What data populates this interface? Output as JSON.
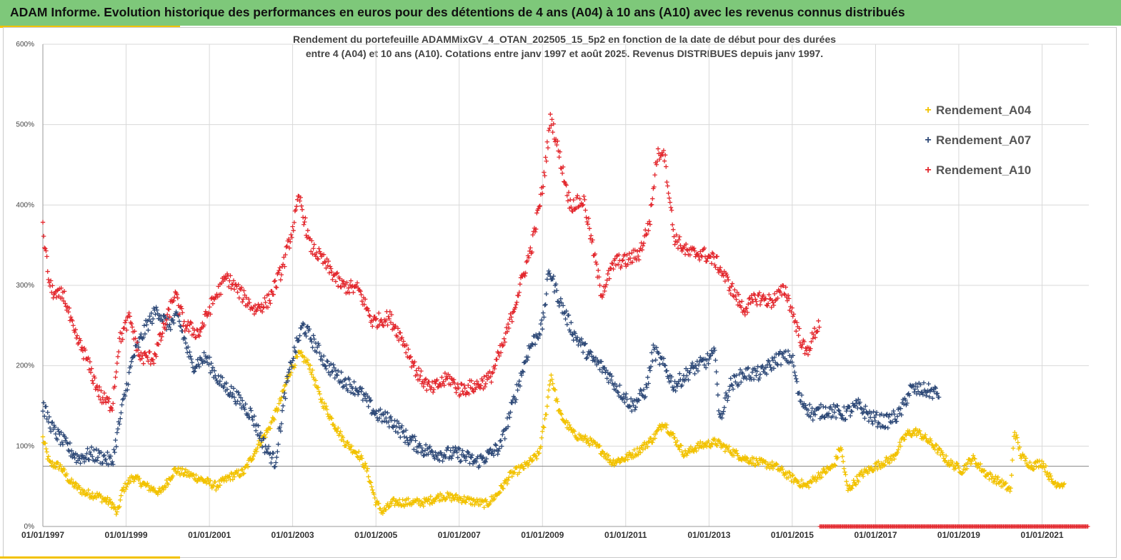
{
  "header": {
    "title": "ADAM Informe. Evolution historique des performances en euros pour des détentions de 4 ans (A04) à 10 ans (A10) avec les revenus connus distribués"
  },
  "chart_data": {
    "type": "scatter",
    "title_line1": "Rendement du portefeuille ADAMMixGV_4_OTAN_202505_15_5p2  en fonction de la date de début pour des durées",
    "title_line2": "entre 4 (A04) et 10 ans (A10). Cotations entre janv 1997 et août 2025. Revenus DISTRIBUES depuis janv 1997.",
    "xlabel": "",
    "ylabel": "",
    "x_range": [
      "1997-01-01",
      "2022-02-15"
    ],
    "ylim": [
      0,
      600
    ],
    "y_ticks": [
      "0%",
      "100%",
      "200%",
      "300%",
      "400%",
      "500%",
      "600%"
    ],
    "x_ticks": [
      "01/01/1997",
      "01/01/1999",
      "01/01/2001",
      "01/01/2003",
      "01/01/2005",
      "01/01/2007",
      "01/01/2009",
      "01/01/2011",
      "01/01/2013",
      "01/01/2015",
      "01/01/2017",
      "01/01/2019",
      "01/01/2021"
    ],
    "grid": true,
    "legend_position": "top-right",
    "reference_line_y": 75,
    "marker": "+",
    "series": [
      {
        "name": "Rendement_A04",
        "color": "#f2c200",
        "x_start": "1997-01-01",
        "x_end": "2021-07-15",
        "points": [
          [
            "1997-01-01",
            110
          ],
          [
            "1997-03-01",
            78
          ],
          [
            "1997-06-01",
            75
          ],
          [
            "1997-09-01",
            55
          ],
          [
            "1998-01-01",
            42
          ],
          [
            "1998-05-01",
            38
          ],
          [
            "1998-09-01",
            28
          ],
          [
            "1998-10-15",
            15
          ],
          [
            "1998-12-01",
            45
          ],
          [
            "1999-03-01",
            62
          ],
          [
            "1999-07-01",
            50
          ],
          [
            "1999-11-01",
            42
          ],
          [
            "2000-03-01",
            70
          ],
          [
            "2000-07-01",
            65
          ],
          [
            "2000-11-01",
            58
          ],
          [
            "2001-03-01",
            50
          ],
          [
            "2001-07-01",
            62
          ],
          [
            "2001-11-01",
            68
          ],
          [
            "2002-03-01",
            100
          ],
          [
            "2002-06-01",
            120
          ],
          [
            "2002-09-01",
            150
          ],
          [
            "2002-12-01",
            190
          ],
          [
            "2003-03-01",
            215
          ],
          [
            "2003-06-01",
            200
          ],
          [
            "2003-09-01",
            160
          ],
          [
            "2003-12-01",
            135
          ],
          [
            "2004-04-01",
            105
          ],
          [
            "2004-08-01",
            90
          ],
          [
            "2004-10-15",
            70
          ],
          [
            "2005-01-01",
            30
          ],
          [
            "2005-03-01",
            18
          ],
          [
            "2005-06-01",
            30
          ],
          [
            "2005-10-01",
            30
          ],
          [
            "2006-03-01",
            30
          ],
          [
            "2006-08-01",
            38
          ],
          [
            "2007-01-01",
            35
          ],
          [
            "2007-06-01",
            30
          ],
          [
            "2007-09-01",
            28
          ],
          [
            "2007-12-01",
            40
          ],
          [
            "2008-04-01",
            65
          ],
          [
            "2008-08-01",
            75
          ],
          [
            "2008-12-01",
            90
          ],
          [
            "2009-02-01",
            140
          ],
          [
            "2009-03-15",
            190
          ],
          [
            "2009-06-01",
            140
          ],
          [
            "2009-10-01",
            115
          ],
          [
            "2010-03-01",
            105
          ],
          [
            "2010-06-01",
            95
          ],
          [
            "2010-09-01",
            80
          ],
          [
            "2011-01-01",
            85
          ],
          [
            "2011-05-01",
            95
          ],
          [
            "2011-09-01",
            110
          ],
          [
            "2011-12-01",
            130
          ],
          [
            "2012-03-01",
            110
          ],
          [
            "2012-06-01",
            90
          ],
          [
            "2012-10-01",
            100
          ],
          [
            "2013-03-01",
            105
          ],
          [
            "2013-07-01",
            95
          ],
          [
            "2013-11-01",
            85
          ],
          [
            "2014-03-01",
            80
          ],
          [
            "2014-08-01",
            75
          ],
          [
            "2015-01-01",
            60
          ],
          [
            "2015-05-01",
            50
          ],
          [
            "2015-09-01",
            65
          ],
          [
            "2016-01-01",
            75
          ],
          [
            "2016-03-01",
            100
          ],
          [
            "2016-05-01",
            45
          ],
          [
            "2016-09-01",
            65
          ],
          [
            "2017-01-01",
            75
          ],
          [
            "2017-06-01",
            85
          ],
          [
            "2017-10-01",
            115
          ],
          [
            "2018-01-01",
            118
          ],
          [
            "2018-06-01",
            100
          ],
          [
            "2018-10-01",
            80
          ],
          [
            "2019-02-01",
            70
          ],
          [
            "2019-05-01",
            85
          ],
          [
            "2019-09-01",
            65
          ],
          [
            "2020-01-01",
            55
          ],
          [
            "2020-04-01",
            45
          ],
          [
            "2020-05-01",
            120
          ],
          [
            "2020-07-01",
            88
          ],
          [
            "2020-10-01",
            75
          ],
          [
            "2021-01-01",
            80
          ],
          [
            "2021-04-01",
            55
          ],
          [
            "2021-07-15",
            52
          ]
        ]
      },
      {
        "name": "Rendement_A07",
        "color": "#2f4a78",
        "x_start": "1997-01-01",
        "x_end": "2018-07-15",
        "points": [
          [
            "1997-01-01",
            150
          ],
          [
            "1997-04-01",
            120
          ],
          [
            "1997-08-01",
            100
          ],
          [
            "1997-11-01",
            85
          ],
          [
            "1998-03-01",
            90
          ],
          [
            "1998-07-01",
            85
          ],
          [
            "1998-09-01",
            80
          ],
          [
            "1998-12-01",
            150
          ],
          [
            "1999-03-01",
            210
          ],
          [
            "1999-07-01",
            250
          ],
          [
            "1999-10-01",
            270
          ],
          [
            "2000-01-01",
            250
          ],
          [
            "2000-04-01",
            260
          ],
          [
            "2000-06-01",
            230
          ],
          [
            "2000-08-01",
            200
          ],
          [
            "2000-12-01",
            210
          ],
          [
            "2001-04-01",
            180
          ],
          [
            "2001-08-01",
            165
          ],
          [
            "2002-01-01",
            140
          ],
          [
            "2002-05-01",
            100
          ],
          [
            "2002-08-01",
            80
          ],
          [
            "2002-11-01",
            170
          ],
          [
            "2003-01-01",
            210
          ],
          [
            "2003-04-01",
            250
          ],
          [
            "2003-07-01",
            230
          ],
          [
            "2003-11-01",
            200
          ],
          [
            "2004-04-01",
            180
          ],
          [
            "2004-08-01",
            170
          ],
          [
            "2005-01-01",
            140
          ],
          [
            "2005-06-01",
            130
          ],
          [
            "2005-10-01",
            110
          ],
          [
            "2006-03-01",
            95
          ],
          [
            "2006-08-01",
            90
          ],
          [
            "2007-01-01",
            90
          ],
          [
            "2007-06-01",
            80
          ],
          [
            "2007-10-01",
            90
          ],
          [
            "2008-01-01",
            100
          ],
          [
            "2008-05-01",
            160
          ],
          [
            "2008-09-01",
            220
          ],
          [
            "2009-01-01",
            250
          ],
          [
            "2009-03-01",
            320
          ],
          [
            "2009-06-01",
            280
          ],
          [
            "2009-10-01",
            240
          ],
          [
            "2010-03-01",
            210
          ],
          [
            "2010-07-01",
            195
          ],
          [
            "2010-11-01",
            170
          ],
          [
            "2011-03-01",
            150
          ],
          [
            "2011-07-01",
            170
          ],
          [
            "2011-09-01",
            220
          ],
          [
            "2011-12-01",
            200
          ],
          [
            "2012-03-01",
            175
          ],
          [
            "2012-08-01",
            195
          ],
          [
            "2012-12-01",
            205
          ],
          [
            "2013-03-01",
            215
          ],
          [
            "2013-04-01",
            130
          ],
          [
            "2013-07-01",
            175
          ],
          [
            "2013-11-01",
            190
          ],
          [
            "2014-04-01",
            190
          ],
          [
            "2014-09-01",
            210
          ],
          [
            "2015-01-01",
            210
          ],
          [
            "2015-03-01",
            160
          ],
          [
            "2015-07-01",
            140
          ],
          [
            "2015-11-01",
            145
          ],
          [
            "2016-04-01",
            140
          ],
          [
            "2016-08-01",
            150
          ],
          [
            "2016-12-01",
            135
          ],
          [
            "2017-04-01",
            130
          ],
          [
            "2017-08-01",
            140
          ],
          [
            "2017-11-01",
            170
          ],
          [
            "2018-03-01",
            170
          ],
          [
            "2018-07-15",
            165
          ]
        ]
      },
      {
        "name": "Rendement_A10",
        "color": "#e3282e",
        "x_start": "1997-01-01",
        "x_end": "2015-09-01",
        "points": [
          [
            "1997-01-01",
            370
          ],
          [
            "1997-03-01",
            300
          ],
          [
            "1997-05-01",
            285
          ],
          [
            "1997-07-01",
            290
          ],
          [
            "1997-10-01",
            240
          ],
          [
            "1998-01-01",
            215
          ],
          [
            "1998-04-01",
            180
          ],
          [
            "1998-06-01",
            160
          ],
          [
            "1998-09-01",
            150
          ],
          [
            "1998-11-01",
            230
          ],
          [
            "1999-02-01",
            260
          ],
          [
            "1999-05-01",
            210
          ],
          [
            "1999-09-01",
            210
          ],
          [
            "2000-01-01",
            260
          ],
          [
            "2000-03-01",
            290
          ],
          [
            "2000-06-01",
            250
          ],
          [
            "2000-10-01",
            240
          ],
          [
            "2001-02-01",
            280
          ],
          [
            "2001-06-01",
            310
          ],
          [
            "2001-10-01",
            290
          ],
          [
            "2002-02-01",
            270
          ],
          [
            "2002-06-01",
            280
          ],
          [
            "2002-10-01",
            320
          ],
          [
            "2003-01-01",
            370
          ],
          [
            "2003-03-01",
            410
          ],
          [
            "2003-06-01",
            350
          ],
          [
            "2003-10-01",
            330
          ],
          [
            "2004-03-01",
            300
          ],
          [
            "2004-08-01",
            295
          ],
          [
            "2004-12-01",
            255
          ],
          [
            "2005-05-01",
            260
          ],
          [
            "2005-09-01",
            230
          ],
          [
            "2006-01-01",
            190
          ],
          [
            "2006-05-01",
            170
          ],
          [
            "2006-10-01",
            185
          ],
          [
            "2007-01-01",
            170
          ],
          [
            "2007-06-01",
            175
          ],
          [
            "2007-10-01",
            185
          ],
          [
            "2008-02-01",
            230
          ],
          [
            "2008-06-01",
            290
          ],
          [
            "2008-10-01",
            350
          ],
          [
            "2009-01-01",
            420
          ],
          [
            "2009-03-15",
            510
          ],
          [
            "2009-06-01",
            460
          ],
          [
            "2009-09-01",
            400
          ],
          [
            "2010-01-01",
            405
          ],
          [
            "2010-06-01",
            290
          ],
          [
            "2010-10-01",
            330
          ],
          [
            "2011-01-01",
            330
          ],
          [
            "2011-05-01",
            340
          ],
          [
            "2011-08-01",
            380
          ],
          [
            "2011-10-01",
            460
          ],
          [
            "2011-12-01",
            470
          ],
          [
            "2012-03-01",
            360
          ],
          [
            "2012-07-01",
            340
          ],
          [
            "2012-11-01",
            340
          ],
          [
            "2013-03-01",
            330
          ],
          [
            "2013-07-01",
            300
          ],
          [
            "2013-11-01",
            270
          ],
          [
            "2014-03-01",
            285
          ],
          [
            "2014-07-01",
            280
          ],
          [
            "2014-11-01",
            295
          ],
          [
            "2015-03-01",
            240
          ],
          [
            "2015-05-01",
            215
          ],
          [
            "2015-09-01",
            255
          ]
        ]
      }
    ],
    "zero_band": {
      "color": "#e3282e",
      "x_start": "2015-09-01",
      "x_end": "2022-02-15",
      "value": 0
    }
  }
}
